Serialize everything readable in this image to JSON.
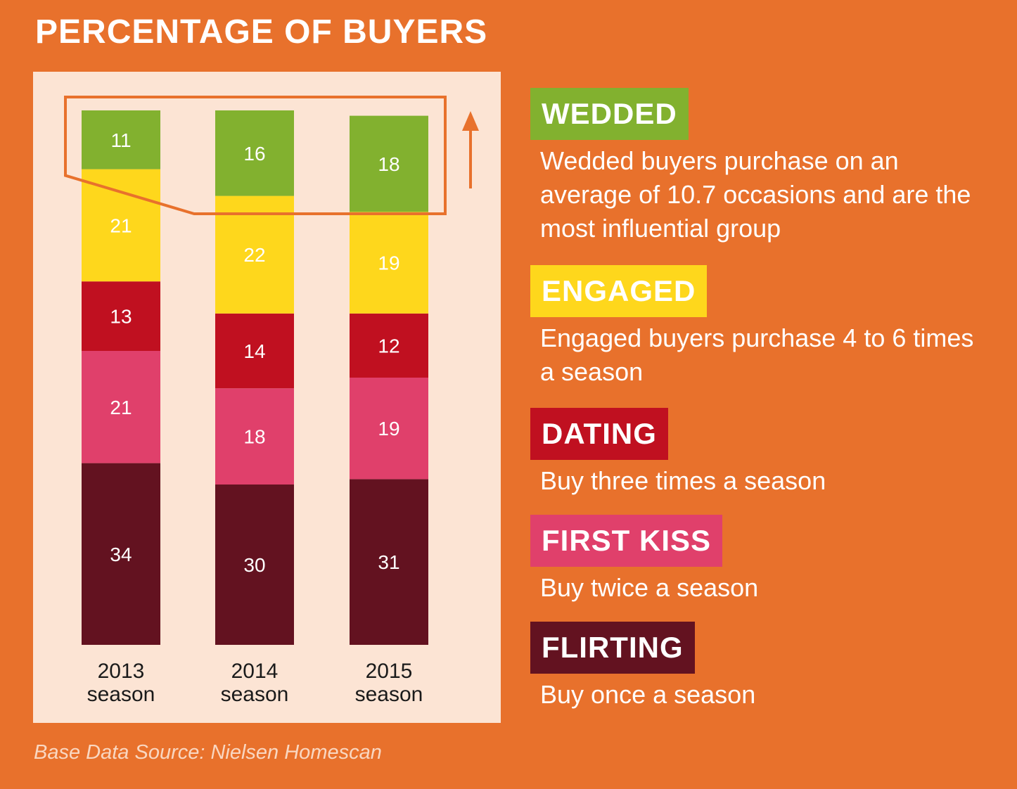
{
  "title": "PERCENTAGE OF BUYERS",
  "source": "Base Data Source: Nielsen Homescan",
  "colors": {
    "background": "#E8712C",
    "panel": "#FCE4D4",
    "highlight": "#E8712C",
    "flirting": "#631220",
    "first_kiss": "#E0406B",
    "dating": "#C01020",
    "engaged": "#FED71C",
    "wedded": "#82B12F"
  },
  "chart_data": {
    "type": "bar",
    "stacked": true,
    "title": "PERCENTAGE OF BUYERS",
    "categories": [
      "2013 season",
      "2014 season",
      "2015 season"
    ],
    "category_labels": [
      {
        "year": "2013",
        "label": "season"
      },
      {
        "year": "2014",
        "label": "season"
      },
      {
        "year": "2015",
        "label": "season"
      }
    ],
    "series": [
      {
        "name": "FLIRTING",
        "color": "#631220",
        "values": [
          34,
          30,
          31
        ]
      },
      {
        "name": "FIRST KISS",
        "color": "#E0406B",
        "values": [
          21,
          18,
          19
        ]
      },
      {
        "name": "DATING",
        "color": "#C01020",
        "values": [
          13,
          14,
          12
        ]
      },
      {
        "name": "ENGAGED",
        "color": "#FED71C",
        "values": [
          21,
          22,
          19
        ]
      },
      {
        "name": "WEDDED",
        "color": "#82B12F",
        "values": [
          11,
          16,
          18
        ]
      }
    ],
    "annotation": "WEDDED segment outlined with an upward trend arrow"
  },
  "legend": [
    {
      "name": "WEDDED",
      "color": "#82B12F",
      "description": "Wedded buyers purchase on an average of 10.7 occasions and are the most influential group"
    },
    {
      "name": "ENGAGED",
      "color": "#FED71C",
      "description": "Engaged buyers purchase 4 to 6 times a season"
    },
    {
      "name": "DATING",
      "color": "#C01020",
      "description": "Buy three times a season"
    },
    {
      "name": "FIRST KISS",
      "color": "#E0406B",
      "description": "Buy twice a season"
    },
    {
      "name": "FLIRTING",
      "color": "#631220",
      "description": "Buy once a season"
    }
  ]
}
